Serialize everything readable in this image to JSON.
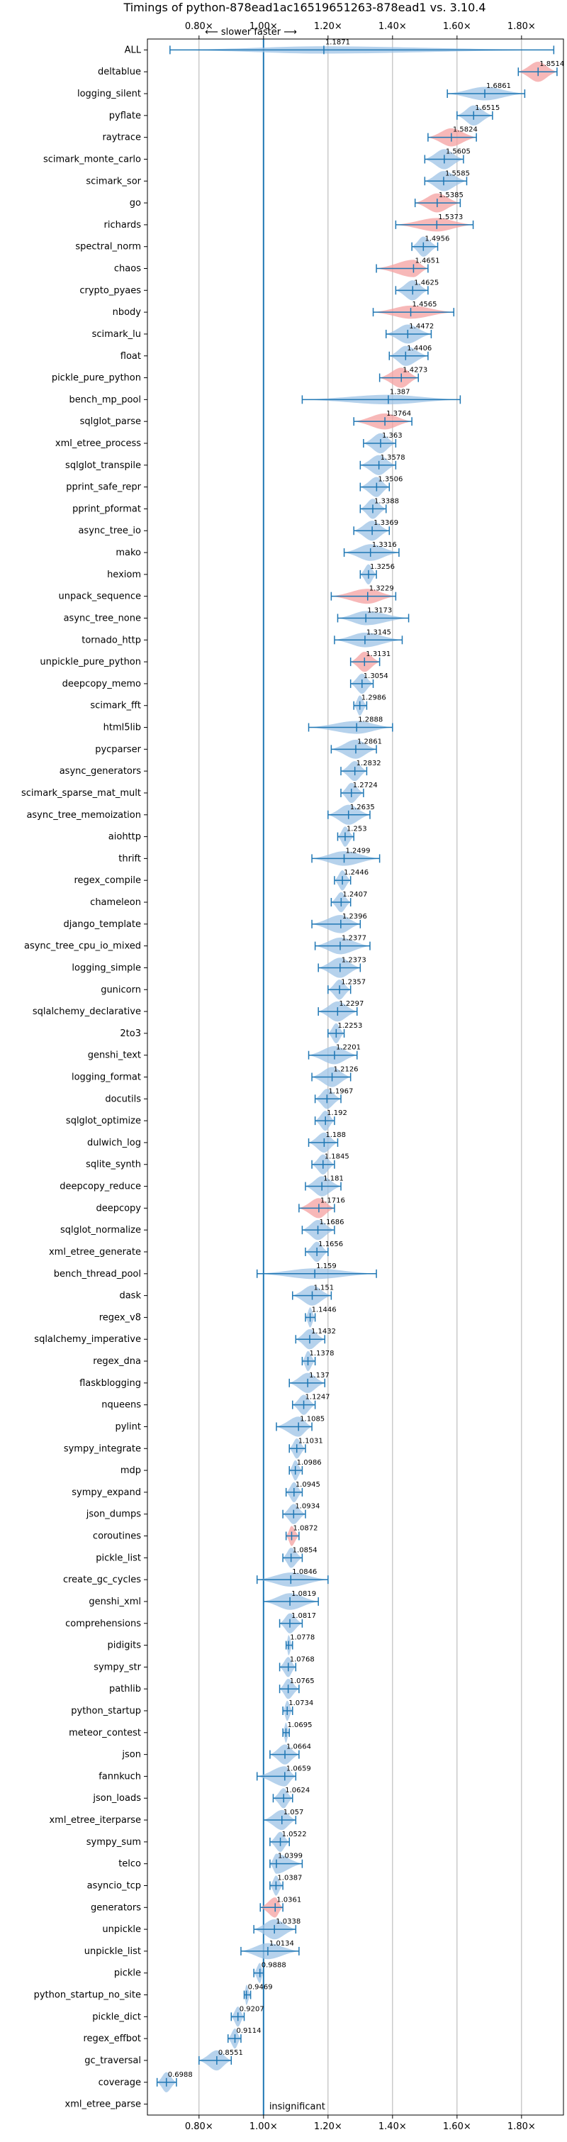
{
  "chart_data": {
    "type": "violin",
    "title": "Timings of python-878ead1ac16519651263-878ead1 vs. 3.10.4",
    "top_annotation": "⟵ slower   faster ⟶",
    "bottom_annotation": "insignificant",
    "xlim": [
      0.64,
      1.93
    ],
    "xticks": [
      0.8,
      1.0,
      1.2,
      1.4,
      1.6,
      1.8
    ],
    "xtick_labels": [
      "0.80×",
      "1.00×",
      "1.20×",
      "1.40×",
      "1.60×",
      "1.80×"
    ],
    "reference_line": 1.0,
    "grid": true,
    "colors": {
      "faster": "#9dc3e6",
      "slower": "#f4a0a0",
      "axis_line": "#1f77b4",
      "bar": "#1f77b4"
    },
    "benchmarks": [
      {
        "name": "ALL",
        "value": 1.1871,
        "min": 0.71,
        "max": 1.9,
        "color": "faster"
      },
      {
        "name": "deltablue",
        "value": 1.8514,
        "min": 1.79,
        "max": 1.91,
        "color": "slower"
      },
      {
        "name": "logging_silent",
        "value": 1.6861,
        "min": 1.57,
        "max": 1.81,
        "color": "faster"
      },
      {
        "name": "pyflate",
        "value": 1.6515,
        "min": 1.6,
        "max": 1.71,
        "color": "faster"
      },
      {
        "name": "raytrace",
        "value": 1.5824,
        "min": 1.51,
        "max": 1.66,
        "color": "slower"
      },
      {
        "name": "scimark_monte_carlo",
        "value": 1.5605,
        "min": 1.5,
        "max": 1.62,
        "color": "faster"
      },
      {
        "name": "scimark_sor",
        "value": 1.5585,
        "min": 1.5,
        "max": 1.63,
        "color": "faster"
      },
      {
        "name": "go",
        "value": 1.5385,
        "min": 1.47,
        "max": 1.61,
        "color": "slower"
      },
      {
        "name": "richards",
        "value": 1.5373,
        "min": 1.41,
        "max": 1.65,
        "color": "slower"
      },
      {
        "name": "spectral_norm",
        "value": 1.4956,
        "min": 1.46,
        "max": 1.54,
        "color": "faster"
      },
      {
        "name": "chaos",
        "value": 1.4651,
        "min": 1.35,
        "max": 1.51,
        "color": "slower"
      },
      {
        "name": "crypto_pyaes",
        "value": 1.4625,
        "min": 1.41,
        "max": 1.51,
        "color": "faster"
      },
      {
        "name": "nbody",
        "value": 1.4565,
        "min": 1.34,
        "max": 1.59,
        "color": "slower"
      },
      {
        "name": "scimark_lu",
        "value": 1.4472,
        "min": 1.38,
        "max": 1.52,
        "color": "faster"
      },
      {
        "name": "float",
        "value": 1.4406,
        "min": 1.39,
        "max": 1.51,
        "color": "faster"
      },
      {
        "name": "pickle_pure_python",
        "value": 1.4273,
        "min": 1.36,
        "max": 1.48,
        "color": "slower"
      },
      {
        "name": "bench_mp_pool",
        "value": 1.387,
        "min": 1.12,
        "max": 1.61,
        "color": "faster"
      },
      {
        "name": "sqlglot_parse",
        "value": 1.3764,
        "min": 1.28,
        "max": 1.46,
        "color": "slower"
      },
      {
        "name": "xml_etree_process",
        "value": 1.363,
        "min": 1.31,
        "max": 1.41,
        "color": "faster"
      },
      {
        "name": "sqlglot_transpile",
        "value": 1.3578,
        "min": 1.3,
        "max": 1.41,
        "color": "faster"
      },
      {
        "name": "pprint_safe_repr",
        "value": 1.3506,
        "min": 1.3,
        "max": 1.39,
        "color": "faster"
      },
      {
        "name": "pprint_pformat",
        "value": 1.3388,
        "min": 1.3,
        "max": 1.38,
        "color": "faster"
      },
      {
        "name": "async_tree_io",
        "value": 1.3369,
        "min": 1.28,
        "max": 1.39,
        "color": "faster"
      },
      {
        "name": "mako",
        "value": 1.3316,
        "min": 1.25,
        "max": 1.42,
        "color": "faster"
      },
      {
        "name": "hexiom",
        "value": 1.3256,
        "min": 1.3,
        "max": 1.35,
        "color": "faster"
      },
      {
        "name": "unpack_sequence",
        "value": 1.3229,
        "min": 1.21,
        "max": 1.41,
        "color": "slower"
      },
      {
        "name": "async_tree_none",
        "value": 1.3173,
        "min": 1.23,
        "max": 1.45,
        "color": "faster"
      },
      {
        "name": "tornado_http",
        "value": 1.3145,
        "min": 1.22,
        "max": 1.43,
        "color": "faster"
      },
      {
        "name": "unpickle_pure_python",
        "value": 1.3131,
        "min": 1.27,
        "max": 1.36,
        "color": "slower"
      },
      {
        "name": "deepcopy_memo",
        "value": 1.3054,
        "min": 1.27,
        "max": 1.34,
        "color": "faster"
      },
      {
        "name": "scimark_fft",
        "value": 1.2986,
        "min": 1.28,
        "max": 1.32,
        "color": "faster"
      },
      {
        "name": "html5lib",
        "value": 1.2888,
        "min": 1.14,
        "max": 1.4,
        "color": "faster"
      },
      {
        "name": "pycparser",
        "value": 1.2861,
        "min": 1.21,
        "max": 1.35,
        "color": "faster"
      },
      {
        "name": "async_generators",
        "value": 1.2832,
        "min": 1.24,
        "max": 1.32,
        "color": "faster"
      },
      {
        "name": "scimark_sparse_mat_mult",
        "value": 1.2724,
        "min": 1.24,
        "max": 1.31,
        "color": "faster"
      },
      {
        "name": "async_tree_memoization",
        "value": 1.2635,
        "min": 1.2,
        "max": 1.33,
        "color": "faster"
      },
      {
        "name": "aiohttp",
        "value": 1.253,
        "min": 1.23,
        "max": 1.28,
        "color": "faster"
      },
      {
        "name": "thrift",
        "value": 1.2499,
        "min": 1.15,
        "max": 1.36,
        "color": "faster"
      },
      {
        "name": "regex_compile",
        "value": 1.2446,
        "min": 1.22,
        "max": 1.27,
        "color": "faster"
      },
      {
        "name": "chameleon",
        "value": 1.2407,
        "min": 1.21,
        "max": 1.27,
        "color": "faster"
      },
      {
        "name": "django_template",
        "value": 1.2396,
        "min": 1.15,
        "max": 1.3,
        "color": "faster"
      },
      {
        "name": "async_tree_cpu_io_mixed",
        "value": 1.2377,
        "min": 1.16,
        "max": 1.33,
        "color": "faster"
      },
      {
        "name": "logging_simple",
        "value": 1.2373,
        "min": 1.17,
        "max": 1.3,
        "color": "faster"
      },
      {
        "name": "gunicorn",
        "value": 1.2357,
        "min": 1.2,
        "max": 1.27,
        "color": "faster"
      },
      {
        "name": "sqlalchemy_declarative",
        "value": 1.2297,
        "min": 1.17,
        "max": 1.29,
        "color": "faster"
      },
      {
        "name": "2to3",
        "value": 1.2253,
        "min": 1.2,
        "max": 1.25,
        "color": "faster"
      },
      {
        "name": "genshi_text",
        "value": 1.2201,
        "min": 1.14,
        "max": 1.29,
        "color": "faster"
      },
      {
        "name": "logging_format",
        "value": 1.2126,
        "min": 1.15,
        "max": 1.27,
        "color": "faster"
      },
      {
        "name": "docutils",
        "value": 1.1967,
        "min": 1.16,
        "max": 1.24,
        "color": "faster"
      },
      {
        "name": "sqlglot_optimize",
        "value": 1.192,
        "min": 1.16,
        "max": 1.22,
        "color": "faster"
      },
      {
        "name": "dulwich_log",
        "value": 1.188,
        "min": 1.14,
        "max": 1.23,
        "color": "faster"
      },
      {
        "name": "sqlite_synth",
        "value": 1.1845,
        "min": 1.15,
        "max": 1.22,
        "color": "faster"
      },
      {
        "name": "deepcopy_reduce",
        "value": 1.181,
        "min": 1.13,
        "max": 1.24,
        "color": "faster"
      },
      {
        "name": "deepcopy",
        "value": 1.1716,
        "min": 1.11,
        "max": 1.22,
        "color": "slower"
      },
      {
        "name": "sqlglot_normalize",
        "value": 1.1686,
        "min": 1.12,
        "max": 1.22,
        "color": "faster"
      },
      {
        "name": "xml_etree_generate",
        "value": 1.1656,
        "min": 1.13,
        "max": 1.2,
        "color": "faster"
      },
      {
        "name": "bench_thread_pool",
        "value": 1.159,
        "min": 0.98,
        "max": 1.35,
        "color": "faster"
      },
      {
        "name": "dask",
        "value": 1.151,
        "min": 1.09,
        "max": 1.21,
        "color": "faster"
      },
      {
        "name": "regex_v8",
        "value": 1.1446,
        "min": 1.13,
        "max": 1.16,
        "color": "faster"
      },
      {
        "name": "sqlalchemy_imperative",
        "value": 1.1432,
        "min": 1.1,
        "max": 1.19,
        "color": "faster"
      },
      {
        "name": "regex_dna",
        "value": 1.1378,
        "min": 1.12,
        "max": 1.16,
        "color": "faster"
      },
      {
        "name": "flaskblogging",
        "value": 1.137,
        "min": 1.08,
        "max": 1.19,
        "color": "faster"
      },
      {
        "name": "nqueens",
        "value": 1.1247,
        "min": 1.09,
        "max": 1.16,
        "color": "faster"
      },
      {
        "name": "pylint",
        "value": 1.1085,
        "min": 1.04,
        "max": 1.15,
        "color": "faster"
      },
      {
        "name": "sympy_integrate",
        "value": 1.1031,
        "min": 1.08,
        "max": 1.13,
        "color": "faster"
      },
      {
        "name": "mdp",
        "value": 1.0986,
        "min": 1.08,
        "max": 1.12,
        "color": "faster"
      },
      {
        "name": "sympy_expand",
        "value": 1.0945,
        "min": 1.07,
        "max": 1.12,
        "color": "faster"
      },
      {
        "name": "json_dumps",
        "value": 1.0934,
        "min": 1.06,
        "max": 1.13,
        "color": "faster"
      },
      {
        "name": "coroutines",
        "value": 1.0872,
        "min": 1.07,
        "max": 1.11,
        "color": "slower"
      },
      {
        "name": "pickle_list",
        "value": 1.0854,
        "min": 1.06,
        "max": 1.12,
        "color": "faster"
      },
      {
        "name": "create_gc_cycles",
        "value": 1.0846,
        "min": 0.98,
        "max": 1.2,
        "color": "faster"
      },
      {
        "name": "genshi_xml",
        "value": 1.0819,
        "min": 1.0,
        "max": 1.17,
        "color": "faster"
      },
      {
        "name": "comprehensions",
        "value": 1.0817,
        "min": 1.05,
        "max": 1.12,
        "color": "faster"
      },
      {
        "name": "pidigits",
        "value": 1.0778,
        "min": 1.07,
        "max": 1.09,
        "color": "faster"
      },
      {
        "name": "sympy_str",
        "value": 1.0768,
        "min": 1.05,
        "max": 1.1,
        "color": "faster"
      },
      {
        "name": "pathlib",
        "value": 1.0765,
        "min": 1.05,
        "max": 1.11,
        "color": "faster"
      },
      {
        "name": "python_startup",
        "value": 1.0734,
        "min": 1.06,
        "max": 1.09,
        "color": "faster"
      },
      {
        "name": "meteor_contest",
        "value": 1.0695,
        "min": 1.06,
        "max": 1.08,
        "color": "faster"
      },
      {
        "name": "json",
        "value": 1.0664,
        "min": 1.02,
        "max": 1.11,
        "color": "faster"
      },
      {
        "name": "fannkuch",
        "value": 1.0659,
        "min": 0.98,
        "max": 1.1,
        "color": "faster"
      },
      {
        "name": "json_loads",
        "value": 1.0624,
        "min": 1.03,
        "max": 1.09,
        "color": "faster"
      },
      {
        "name": "xml_etree_iterparse",
        "value": 1.057,
        "min": 1.0,
        "max": 1.1,
        "color": "faster"
      },
      {
        "name": "sympy_sum",
        "value": 1.0522,
        "min": 1.02,
        "max": 1.08,
        "color": "faster"
      },
      {
        "name": "telco",
        "value": 1.0399,
        "min": 1.02,
        "max": 1.12,
        "color": "faster"
      },
      {
        "name": "asyncio_tcp",
        "value": 1.0387,
        "min": 1.02,
        "max": 1.06,
        "color": "faster"
      },
      {
        "name": "generators",
        "value": 1.0361,
        "min": 0.99,
        "max": 1.06,
        "color": "slower"
      },
      {
        "name": "unpickle",
        "value": 1.0338,
        "min": 0.97,
        "max": 1.1,
        "color": "faster"
      },
      {
        "name": "unpickle_list",
        "value": 1.0134,
        "min": 0.93,
        "max": 1.11,
        "color": "faster"
      },
      {
        "name": "pickle",
        "value": 0.9888,
        "min": 0.97,
        "max": 1.0,
        "color": "faster"
      },
      {
        "name": "python_startup_no_site",
        "value": 0.9469,
        "min": 0.94,
        "max": 0.96,
        "color": "faster"
      },
      {
        "name": "pickle_dict",
        "value": 0.9207,
        "min": 0.9,
        "max": 0.94,
        "color": "faster"
      },
      {
        "name": "regex_effbot",
        "value": 0.9114,
        "min": 0.89,
        "max": 0.93,
        "color": "faster"
      },
      {
        "name": "gc_traversal",
        "value": 0.8551,
        "min": 0.8,
        "max": 0.9,
        "color": "faster"
      },
      {
        "name": "coverage",
        "value": 0.6988,
        "min": 0.67,
        "max": 0.73,
        "color": "faster"
      },
      {
        "name": "xml_etree_parse",
        "value": null,
        "min": null,
        "max": null,
        "color": "faster"
      }
    ]
  }
}
